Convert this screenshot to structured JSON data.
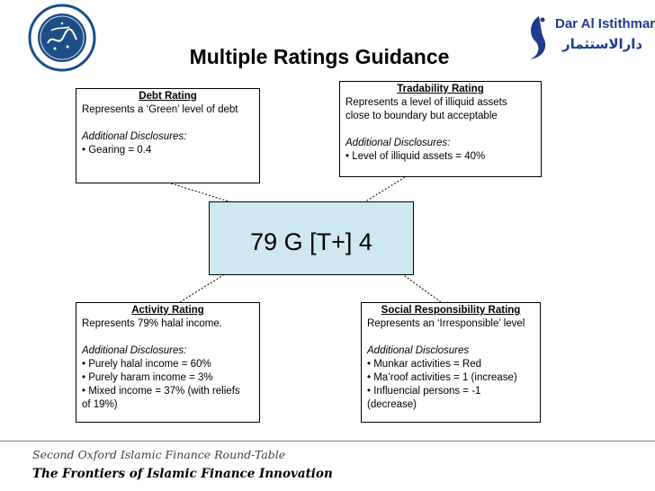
{
  "logo_left": {
    "name": "Oxford Islamic Finance"
  },
  "logo_right": {
    "name": "Dar Al Istithmar",
    "arabic": "دارالاستثمار",
    "color": "#1f3a8f"
  },
  "title": "Multiple Ratings Guidance",
  "debt_rating": {
    "heading": "Debt Rating",
    "description": "Represents a ‘Green’ level of debt",
    "disclosures_title": "Additional Disclosures:",
    "items": [
      "• Gearing = 0.4"
    ]
  },
  "tradability_rating": {
    "heading": "Tradability Rating",
    "description_lines": [
      "Represents a level of illiquid assets",
      "close to boundary but acceptable"
    ],
    "disclosures_title": "Additional Disclosures:",
    "items": [
      "• Level of illiquid assets = 40%"
    ]
  },
  "composite": {
    "code": "79  G  [T+]  4",
    "fill_color": "#cfe7ee"
  },
  "activity_rating": {
    "heading": "Activity Rating",
    "description": "Represents 79% halal income.",
    "disclosures_title": "Additional Disclosures:",
    "items": [
      "• Purely halal income = 60%",
      "• Purely haram income = 3%",
      "• Mixed income = 37% (with reliefs",
      "of 19%)"
    ]
  },
  "social_rating": {
    "heading": "Social Responsibility Rating",
    "description": "Represents an ‘Irresponsible’ level",
    "disclosures_title": "Additional Disclosures",
    "items": [
      "• Munkar activities = Red",
      "• Ma’roof activities = 1 (increase)",
      "• Influencial persons = -1",
      "(decrease)"
    ]
  },
  "footer": {
    "event": "Second Oxford Islamic Finance Round-Table",
    "theme": "The Frontiers of Islamic Finance Innovation"
  }
}
